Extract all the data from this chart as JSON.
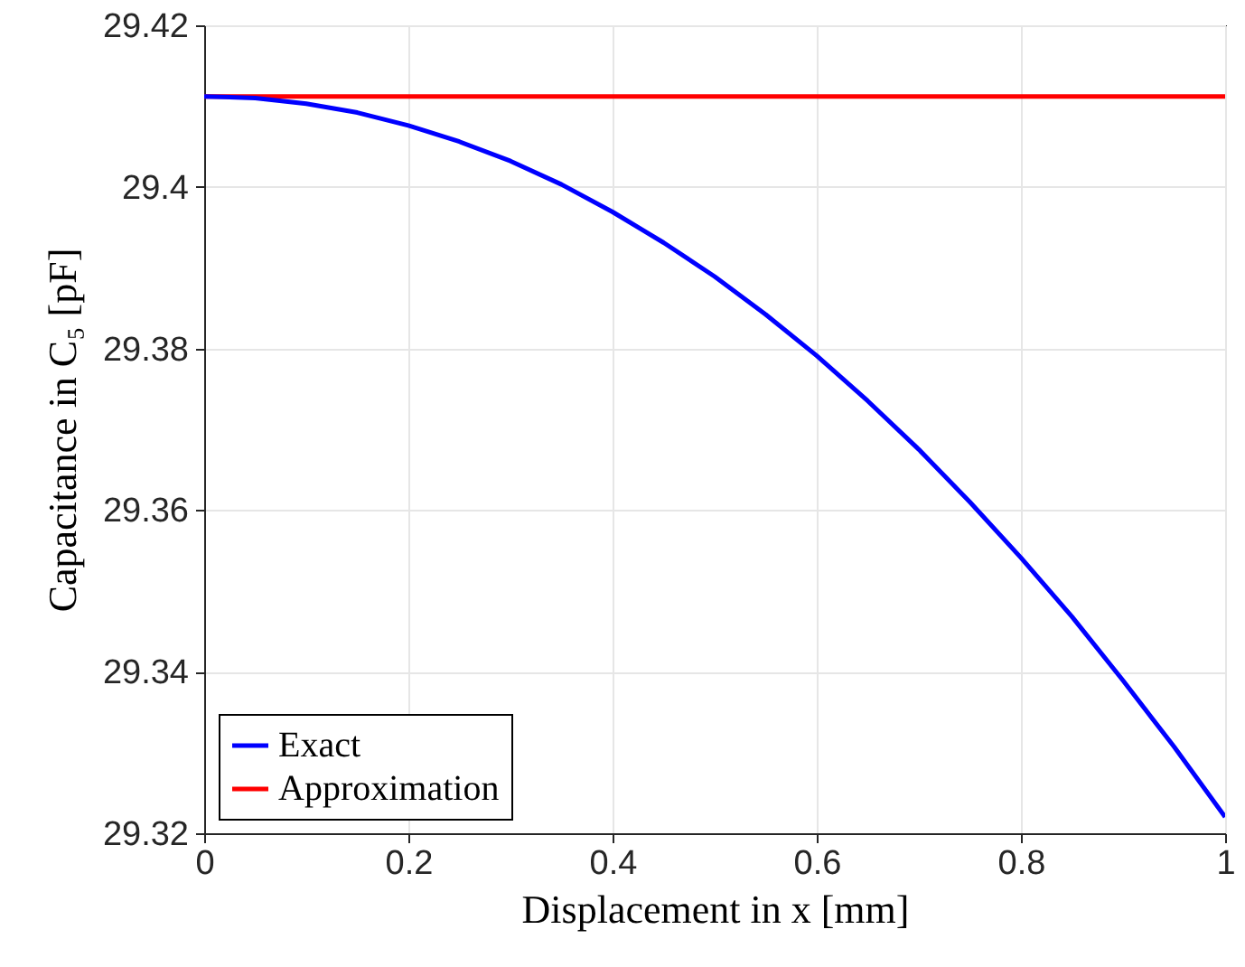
{
  "chart_data": {
    "type": "line",
    "xlabel": "Displacement in x [mm]",
    "ylabel": "Capacitance in C₅ [pF]",
    "xlim": [
      0,
      1
    ],
    "xticks": [
      0,
      0.2,
      0.4,
      0.6,
      0.8,
      1
    ],
    "ylim": [
      29.32,
      29.42
    ],
    "yticks": [
      29.32,
      29.34,
      29.36,
      29.38,
      29.4,
      29.42
    ],
    "grid": true,
    "legend": "bottom left",
    "line_style": "solid",
    "marker": "none",
    "series": [
      {
        "name": "Exact",
        "color": "#0000ff",
        "x": [
          0,
          0.05,
          0.1,
          0.15,
          0.2,
          0.25,
          0.3,
          0.35,
          0.4,
          0.45,
          0.5,
          0.55,
          0.6,
          0.65,
          0.7,
          0.75,
          0.8,
          0.85,
          0.9,
          0.95,
          1
        ],
        "values": [
          29.4112,
          29.411,
          29.4103,
          29.4092,
          29.4076,
          29.4056,
          29.4032,
          29.4003,
          29.3969,
          29.3931,
          29.3889,
          29.3842,
          29.3791,
          29.3735,
          29.3675,
          29.361,
          29.3541,
          29.3468,
          29.3389,
          29.3307,
          29.322
        ]
      },
      {
        "name": "Approximation",
        "color": "#ff0000",
        "x": [
          0,
          1
        ],
        "values": [
          29.4112,
          29.4112
        ]
      }
    ]
  }
}
